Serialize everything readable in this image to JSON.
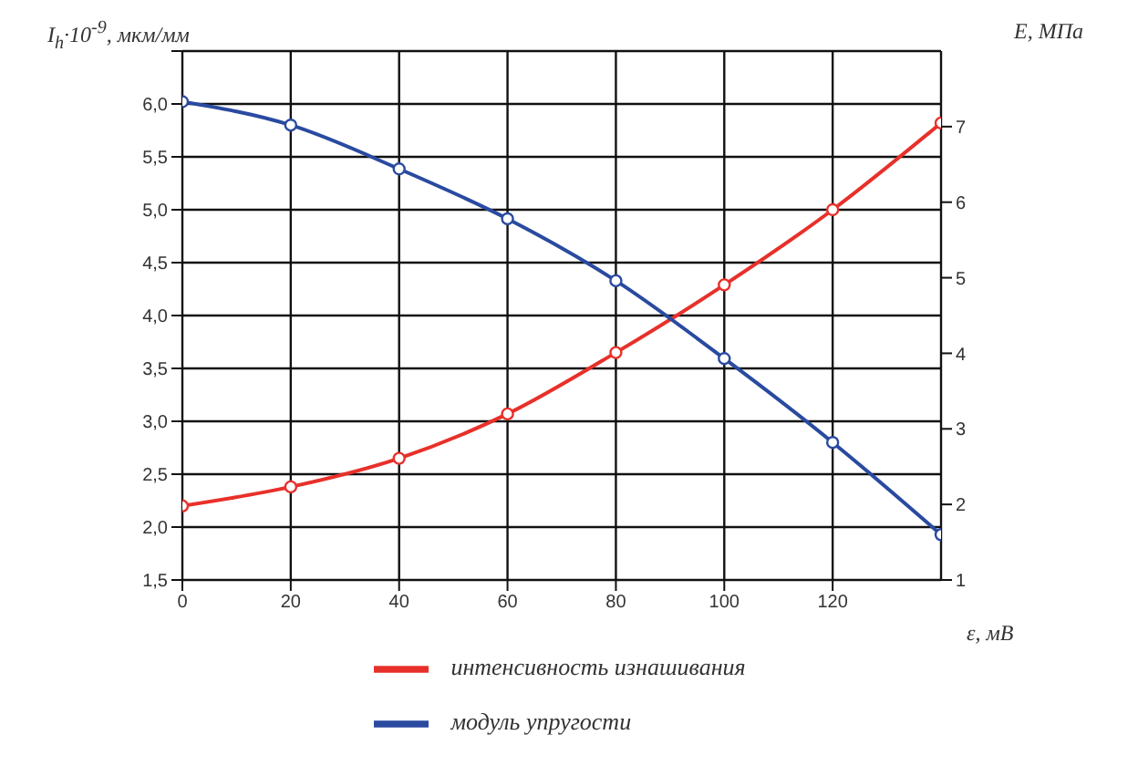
{
  "chart_data": {
    "type": "line",
    "xlabel": "ε, мВ",
    "ylabel": "I$_{h}$·10$^{-9}$, мкм/мм",
    "y2label": "E, МПа",
    "x": [
      0,
      20,
      40,
      60,
      80,
      100,
      120,
      140
    ],
    "series": [
      {
        "name": "интенсивность изнашивания",
        "color": "#e8302a",
        "values": [
          2.2,
          2.38,
          2.65,
          3.07,
          3.65,
          4.29,
          5.0,
          5.82
        ]
      },
      {
        "name": "модуль упругости",
        "color": "#2a4aa0",
        "axis": "y2",
        "values": [
          7.33,
          7.02,
          6.44,
          5.78,
          4.96,
          3.93,
          2.82,
          1.6
        ]
      }
    ],
    "xlim": [
      0,
      140
    ],
    "xticks": [
      0,
      20,
      40,
      60,
      80,
      100,
      120
    ],
    "ylim": [
      1.5,
      6.5
    ],
    "yticks": [
      {
        "value": 1.5,
        "label": "1,5"
      },
      {
        "value": 2,
        "label": "2,0"
      },
      {
        "value": 2.5,
        "label": "2,5"
      },
      {
        "value": 3,
        "label": "3,0"
      },
      {
        "value": 3.5,
        "label": "3,5"
      },
      {
        "value": 4,
        "label": "4,0"
      },
      {
        "value": 4.5,
        "label": "4,5"
      },
      {
        "value": 5,
        "label": "5,0"
      },
      {
        "value": 5.5,
        "label": "5,5"
      },
      {
        "value": 6,
        "label": "6,0"
      },
      {
        "value": 6.5,
        "label": null
      }
    ],
    "y2lim": [
      1,
      8
    ],
    "y2ticks": [
      1,
      2,
      3,
      4,
      5,
      6,
      7
    ],
    "grid": true,
    "legend": "bottom",
    "marker": "circle",
    "line_style": "solid"
  }
}
